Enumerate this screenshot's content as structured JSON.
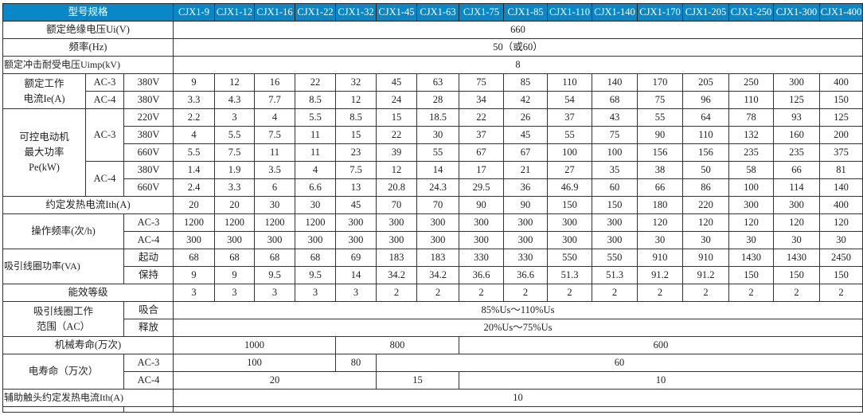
{
  "header": {
    "label": "型号规格",
    "models": [
      "CJX1-9",
      "CJX1-12",
      "CJX1-16",
      "CJX1-22",
      "CJX1-32",
      "CJX1-45",
      "CJX1-63",
      "CJX1-75",
      "CJX1-85",
      "CJX1-110",
      "CJX1-140",
      "CJX1-170",
      "CJX1-205",
      "CJX1-250",
      "CJX1-300",
      "CJX1-400"
    ],
    "color": "#0a87c6"
  },
  "insulation_voltage": {
    "label": "额定绝缘电压Ui(V)",
    "value": "660"
  },
  "frequency": {
    "label": "频率(Hz)",
    "value": "50（或60）"
  },
  "impulse_voltage": {
    "label": "额定冲击耐受电压Uimp(kV)",
    "value": "8"
  },
  "rated_current": {
    "label": "额定工作\n电流Ie(A)",
    "rows": [
      {
        "category": "AC-3",
        "voltage": "380V",
        "values": [
          "9",
          "12",
          "16",
          "22",
          "32",
          "45",
          "63",
          "75",
          "85",
          "110",
          "140",
          "170",
          "205",
          "250",
          "300",
          "400"
        ]
      },
      {
        "category": "AC-4",
        "voltage": "380V",
        "values": [
          "3.3",
          "4.3",
          "7.7",
          "8.5",
          "12",
          "24",
          "28",
          "34",
          "42",
          "54",
          "68",
          "75",
          "96",
          "110",
          "125",
          "150"
        ]
      }
    ]
  },
  "motor_power": {
    "label": "可控电动机\n最大功率\nPe(kW)",
    "groups": [
      {
        "category": "AC-3",
        "rows": [
          {
            "voltage": "220V",
            "values": [
              "2.2",
              "3",
              "4",
              "5.5",
              "8.5",
              "15",
              "18.5",
              "22",
              "26",
              "37",
              "43",
              "55",
              "64",
              "78",
              "93",
              "125"
            ]
          },
          {
            "voltage": "380V",
            "values": [
              "4",
              "5.5",
              "7.5",
              "11",
              "15",
              "22",
              "30",
              "37",
              "45",
              "55",
              "75",
              "90",
              "110",
              "132",
              "160",
              "200"
            ]
          },
          {
            "voltage": "660V",
            "values": [
              "5.5",
              "7.5",
              "11",
              "11",
              "23",
              "39",
              "55",
              "67",
              "67",
              "100",
              "100",
              "156",
              "156",
              "235",
              "235",
              "375"
            ]
          }
        ]
      },
      {
        "category": "AC-4",
        "rows": [
          {
            "voltage": "380V",
            "values": [
              "1.4",
              "1.9",
              "3.5",
              "4",
              "7.5",
              "12",
              "14",
              "17",
              "21",
              "27",
              "35",
              "38",
              "50",
              "58",
              "66",
              "81"
            ]
          },
          {
            "voltage": "660V",
            "values": [
              "2.4",
              "3.3",
              "6",
              "6.6",
              "13",
              "20.8",
              "24.3",
              "29.5",
              "36",
              "46.9",
              "60",
              "66",
              "86",
              "100",
              "114",
              "140"
            ]
          }
        ]
      }
    ]
  },
  "thermal_current": {
    "label": "约定发热电流Ith(A)",
    "values": [
      "20",
      "20",
      "30",
      "30",
      "45",
      "70",
      "70",
      "90",
      "90",
      "150",
      "150",
      "180",
      "220",
      "300",
      "300",
      "400"
    ]
  },
  "operating_frequency": {
    "label": "操作频率(次/h)",
    "rows": [
      {
        "category": "AC-3",
        "values": [
          "1200",
          "1200",
          "1200",
          "1200",
          "300",
          "300",
          "300",
          "300",
          "300",
          "300",
          "300",
          "120",
          "120",
          "120",
          "120",
          "120"
        ]
      },
      {
        "category": "AC-4",
        "values": [
          "300",
          "300",
          "300",
          "300",
          "300",
          "300",
          "300",
          "300",
          "300",
          "300",
          "300",
          "30",
          "30",
          "30",
          "30",
          "30"
        ]
      }
    ]
  },
  "coil_power": {
    "label": "吸引线圈功率(VA)",
    "rows": [
      {
        "category": "起动",
        "values": [
          "68",
          "68",
          "68",
          "68",
          "69",
          "183",
          "183",
          "330",
          "330",
          "550",
          "550",
          "910",
          "910",
          "1430",
          "1430",
          "2450"
        ]
      },
      {
        "category": "保持",
        "values": [
          "9",
          "9",
          "9.5",
          "9.5",
          "14",
          "34.2",
          "34.2",
          "36.6",
          "36.6",
          "51.3",
          "51.3",
          "91.2",
          "91.2",
          "150",
          "150",
          "150"
        ]
      }
    ]
  },
  "efficiency_grade": {
    "label": "能效等级",
    "values": [
      "3",
      "3",
      "3",
      "3",
      "3",
      "2",
      "2",
      "2",
      "2",
      "2",
      "2",
      "2",
      "2",
      "2",
      "2",
      "2"
    ]
  },
  "coil_range": {
    "label": "吸引线圈工作\n范围（AC）",
    "rows": [
      {
        "category": "吸合",
        "value": "85%Us～110%Us"
      },
      {
        "category": "释放",
        "value": "20%Us～75%Us"
      }
    ]
  },
  "mechanical_life": {
    "label": "机械寿命(万次)",
    "segments": [
      "1000",
      "800",
      "600"
    ]
  },
  "electrical_life": {
    "label": "电寿命（万次）",
    "rows": [
      {
        "category": "AC-3",
        "segments": [
          "100",
          "80",
          "60"
        ]
      },
      {
        "category": "AC-4",
        "segments": [
          "20",
          "15",
          "10"
        ]
      }
    ]
  },
  "aux_thermal_current": {
    "label": "辅助触头约定发热电流Ith(A)",
    "value": "10"
  }
}
